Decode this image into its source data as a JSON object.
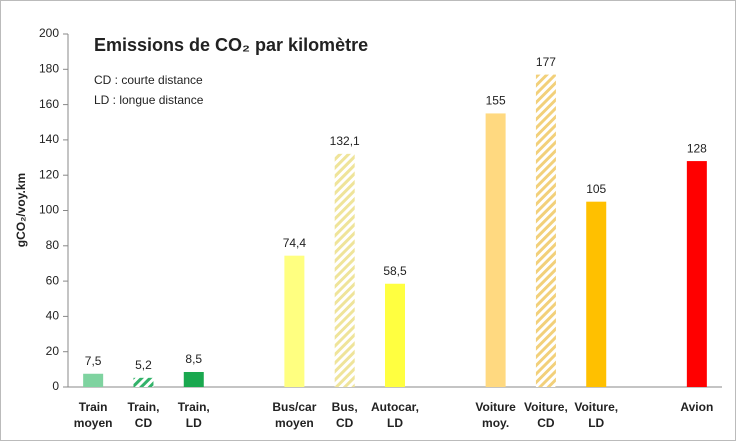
{
  "chart_data": {
    "type": "bar",
    "title": "Emissions de CO₂ par kilomètre",
    "annotations": [
      "CD : courte distance",
      "LD : longue distance"
    ],
    "y_label": "gCO₂/voy.km",
    "categories": [
      "Train moyen",
      "Train, CD",
      "Train, LD",
      null,
      "Bus/car moyen",
      "Bus, CD",
      "Autocar, LD",
      null,
      "Voiture moy.",
      "Voiture, CD",
      "Voiture, LD",
      null,
      "Avion"
    ],
    "values": [
      7.5,
      5.2,
      8.5,
      null,
      74.4,
      132.1,
      58.5,
      null,
      155,
      177,
      105,
      null,
      128
    ],
    "value_labels": [
      "7,5",
      "5,2",
      "8,5",
      null,
      "74,4",
      "132,1",
      "58,5",
      null,
      "155",
      "177",
      "105",
      null,
      "128"
    ],
    "colors": [
      "#7fd3a0",
      "#33b26a",
      "#1aa84f",
      null,
      "#ffff80",
      "#efe49a",
      "#ffff40",
      null,
      "#ffd980",
      "#f2d07a",
      "#ffc000",
      null,
      "#ff0000"
    ],
    "hatched": [
      false,
      true,
      false,
      null,
      false,
      true,
      false,
      null,
      false,
      true,
      false,
      null,
      false
    ],
    "ylim": [
      0,
      200
    ],
    "yticks": [
      0,
      20,
      40,
      60,
      80,
      100,
      120,
      140,
      160,
      180,
      200
    ],
    "grid": false
  }
}
